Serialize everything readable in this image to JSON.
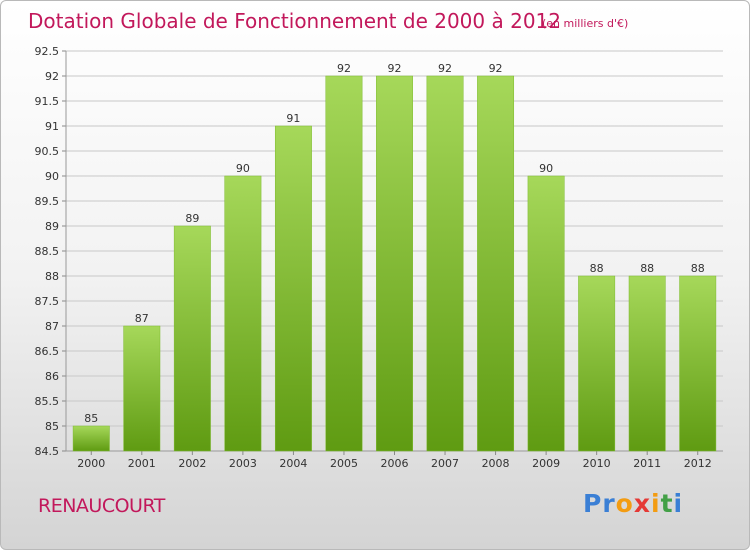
{
  "title": "Dotation Globale de Fonctionnement de 2000 à 2012",
  "subtitle": "(en milliers d'€)",
  "commune": "RENAUCOURT",
  "logo": {
    "letters": [
      "P",
      "r",
      "o",
      "x",
      "i",
      "t",
      "i"
    ],
    "colors": [
      "#3a7fd5",
      "#3a7fd5",
      "#f39c12",
      "#e53935",
      "#f39c12",
      "#43a047",
      "#3a7fd5"
    ]
  },
  "colors": {
    "title": "#c2185b",
    "bar_light": "#a6d85a",
    "bar_dark": "#5f9b12",
    "grid": "#c8c8c8"
  },
  "chart_data": {
    "type": "bar",
    "categories": [
      "2000",
      "2001",
      "2002",
      "2003",
      "2004",
      "2005",
      "2006",
      "2007",
      "2008",
      "2009",
      "2010",
      "2011",
      "2012"
    ],
    "values": [
      85,
      87,
      89,
      90,
      91,
      92,
      92,
      92,
      92,
      90,
      88,
      88,
      88
    ],
    "data_labels": [
      "85",
      "87",
      "89",
      "90",
      "91",
      "92",
      "92",
      "92",
      "92",
      "90",
      "88",
      "88",
      "88"
    ],
    "yticks": [
      "84.5",
      "85",
      "85.5",
      "86",
      "86.5",
      "87",
      "87.5",
      "88",
      "88.5",
      "89",
      "89.5",
      "90",
      "90.5",
      "91",
      "91.5",
      "92",
      "92.5"
    ],
    "ylim": [
      84.5,
      92.5
    ],
    "grid": true
  }
}
